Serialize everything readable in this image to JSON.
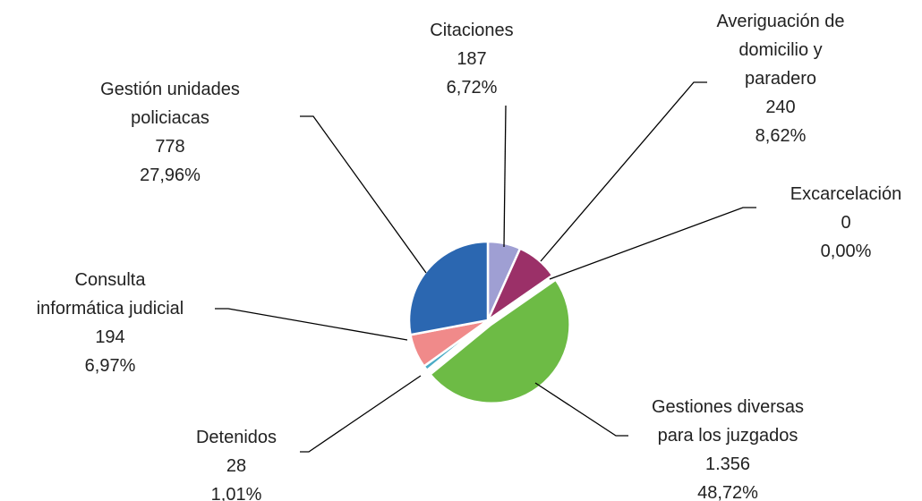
{
  "chart_data": {
    "type": "pie",
    "categories": [
      "Citaciones",
      "Averiguación de domicilio y paradero",
      "Excarcelación",
      "Gestiones diversas para los juzgados",
      "Detenidos",
      "Consulta informática judicial",
      "Gestión unidades policiacas"
    ],
    "values": [
      187,
      240,
      0,
      1356,
      28,
      194,
      778
    ],
    "value_labels": [
      "187",
      "240",
      "0",
      "1.356",
      "28",
      "194",
      "778"
    ],
    "percents": [
      6.72,
      8.62,
      0,
      48.72,
      1.01,
      6.97,
      27.96
    ],
    "percent_labels": [
      "6,72%",
      "8,62%",
      "0,00%",
      "48,72%",
      "1,01%",
      "6,97%",
      "27,96%"
    ],
    "colors": [
      "#9f9fd3",
      "#9b3068",
      "#e8a33d",
      "#6dbb45",
      "#4bacc6",
      "#f08a8a",
      "#2b67b1"
    ]
  }
}
